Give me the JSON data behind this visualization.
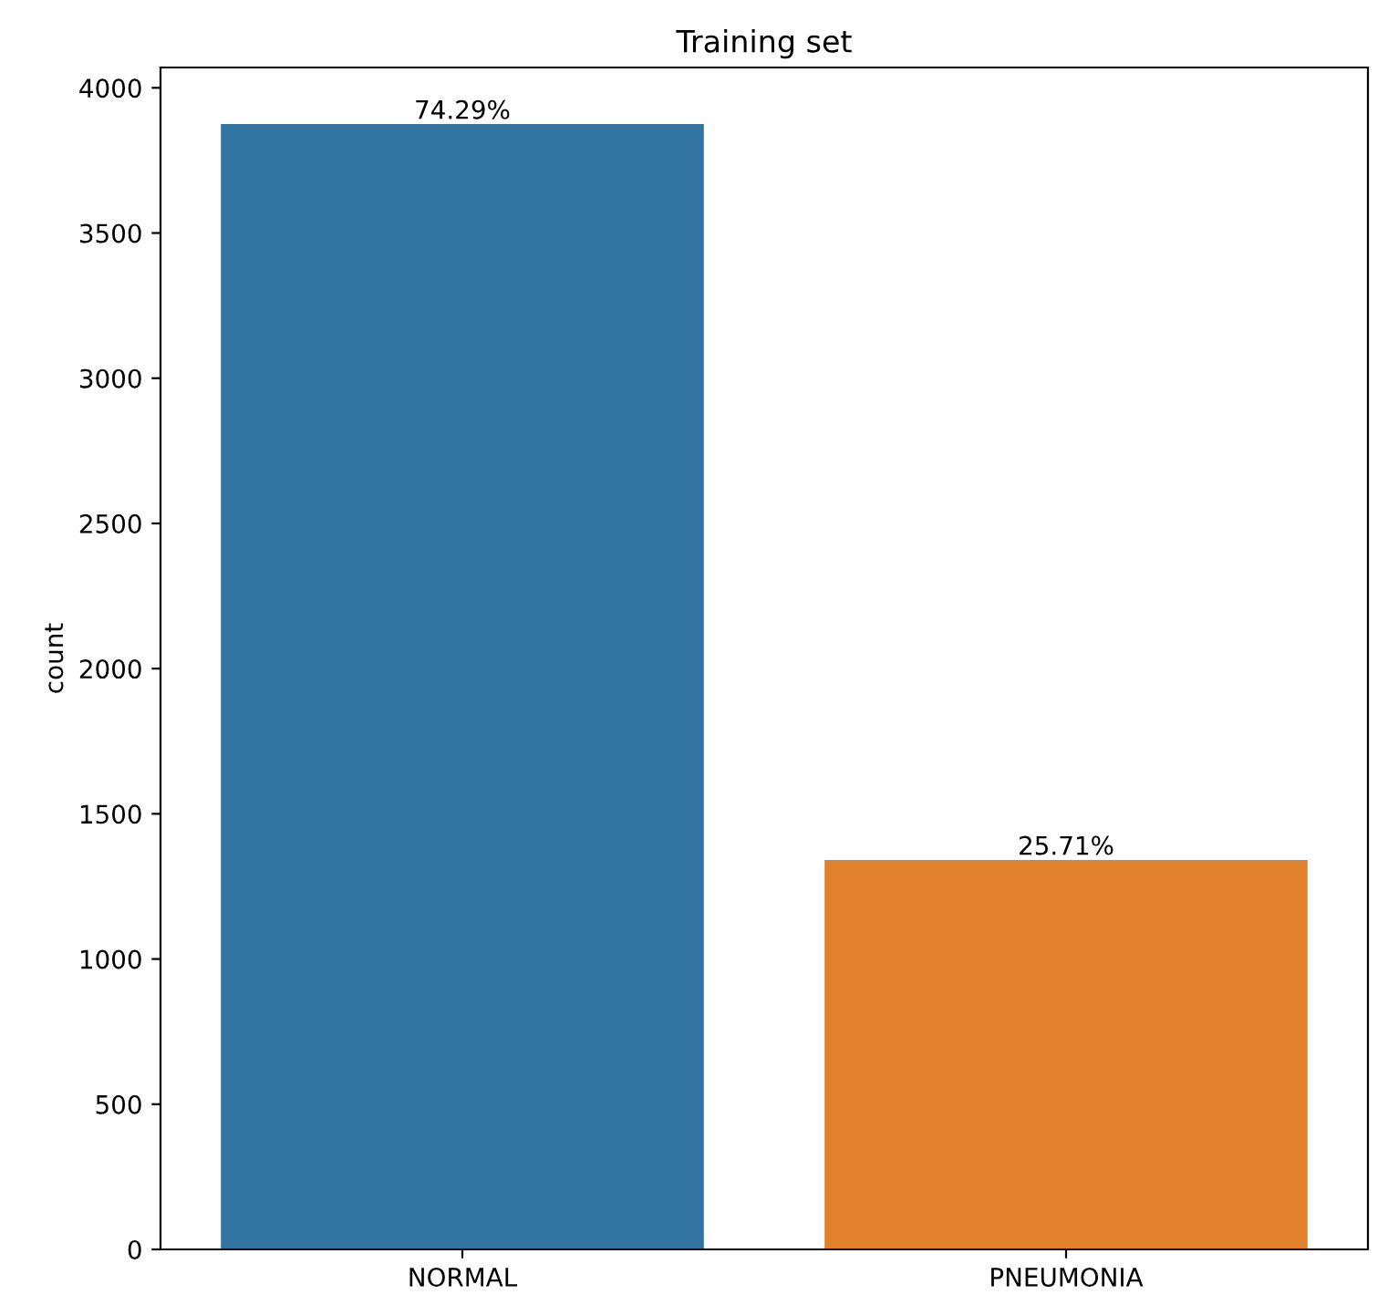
{
  "chart_data": {
    "type": "bar",
    "title": "Training set",
    "ylabel": "count",
    "categories": [
      "NORMAL",
      "PNEUMONIA"
    ],
    "values": [
      3875,
      1341
    ],
    "colors": [
      "#3274a1",
      "#e1812c"
    ],
    "annotations": [
      {
        "text": "74.29%",
        "x": "NORMAL",
        "y": 3875
      },
      {
        "text": "25.71%",
        "x": "PNEUMONIA",
        "y": 1341
      }
    ],
    "ylim": [
      0,
      4070
    ],
    "yticks": [
      0,
      500,
      1000,
      1500,
      2000,
      2500,
      3000,
      3500,
      4000
    ],
    "grid": false,
    "legend": false
  }
}
